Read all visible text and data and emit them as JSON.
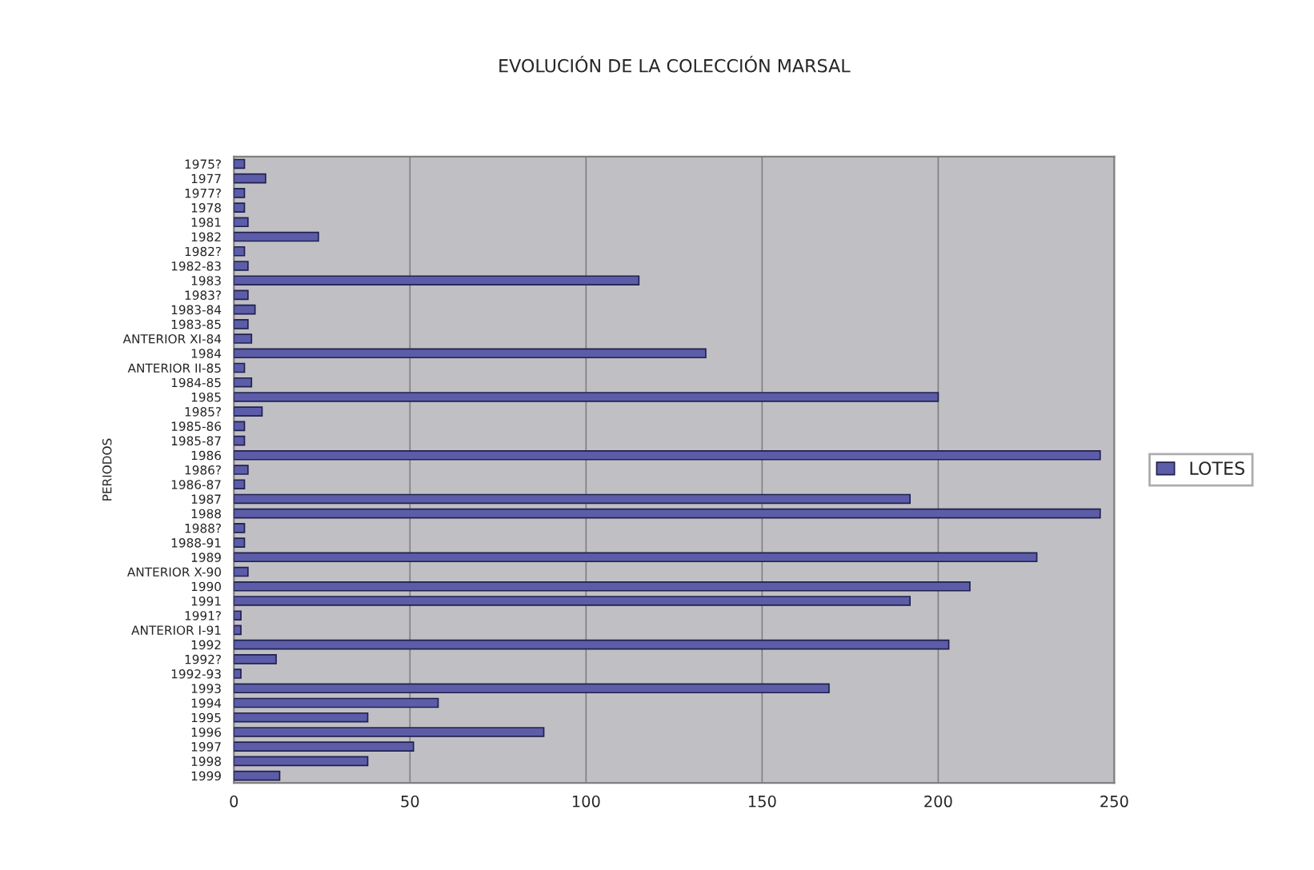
{
  "chart_data": {
    "type": "bar",
    "orientation": "horizontal",
    "title": "EVOLUCIÓN DE LA COLECCIÓN MARSAL",
    "ylabel": "PERIODOS",
    "categories": [
      "1975?",
      "1977",
      "1977?",
      "1978",
      "1981",
      "1982",
      "1982?",
      "1982-83",
      "1983",
      "1983?",
      "1983-84",
      "1983-85",
      "ANTERIOR XI-84",
      "1984",
      "ANTERIOR II-85",
      "1984-85",
      "1985",
      "1985?",
      "1985-86",
      "1985-87",
      "1986",
      "1986?",
      "1986-87",
      "1987",
      "1988",
      "1988?",
      "1988-91",
      "1989",
      "ANTERIOR X-90",
      "1990",
      "1991",
      "1991?",
      "ANTERIOR I-91",
      "1992",
      "1992?",
      "1992-93",
      "1993",
      "1994",
      "1995",
      "1996",
      "1997",
      "1998",
      "1999"
    ],
    "series": [
      {
        "name": "LOTES",
        "color": "#5c5ca8",
        "values": [
          3,
          9,
          3,
          3,
          4,
          24,
          3,
          4,
          115,
          4,
          6,
          4,
          5,
          134,
          3,
          5,
          200,
          8,
          3,
          3,
          246,
          4,
          3,
          192,
          246,
          3,
          3,
          228,
          4,
          209,
          192,
          2,
          2,
          203,
          12,
          2,
          169,
          58,
          38,
          88,
          51,
          38,
          13
        ]
      }
    ],
    "xlim": [
      0,
      250
    ],
    "xticks": [
      0,
      50,
      100,
      150,
      200,
      250
    ],
    "grid": "x",
    "legend": "right"
  }
}
